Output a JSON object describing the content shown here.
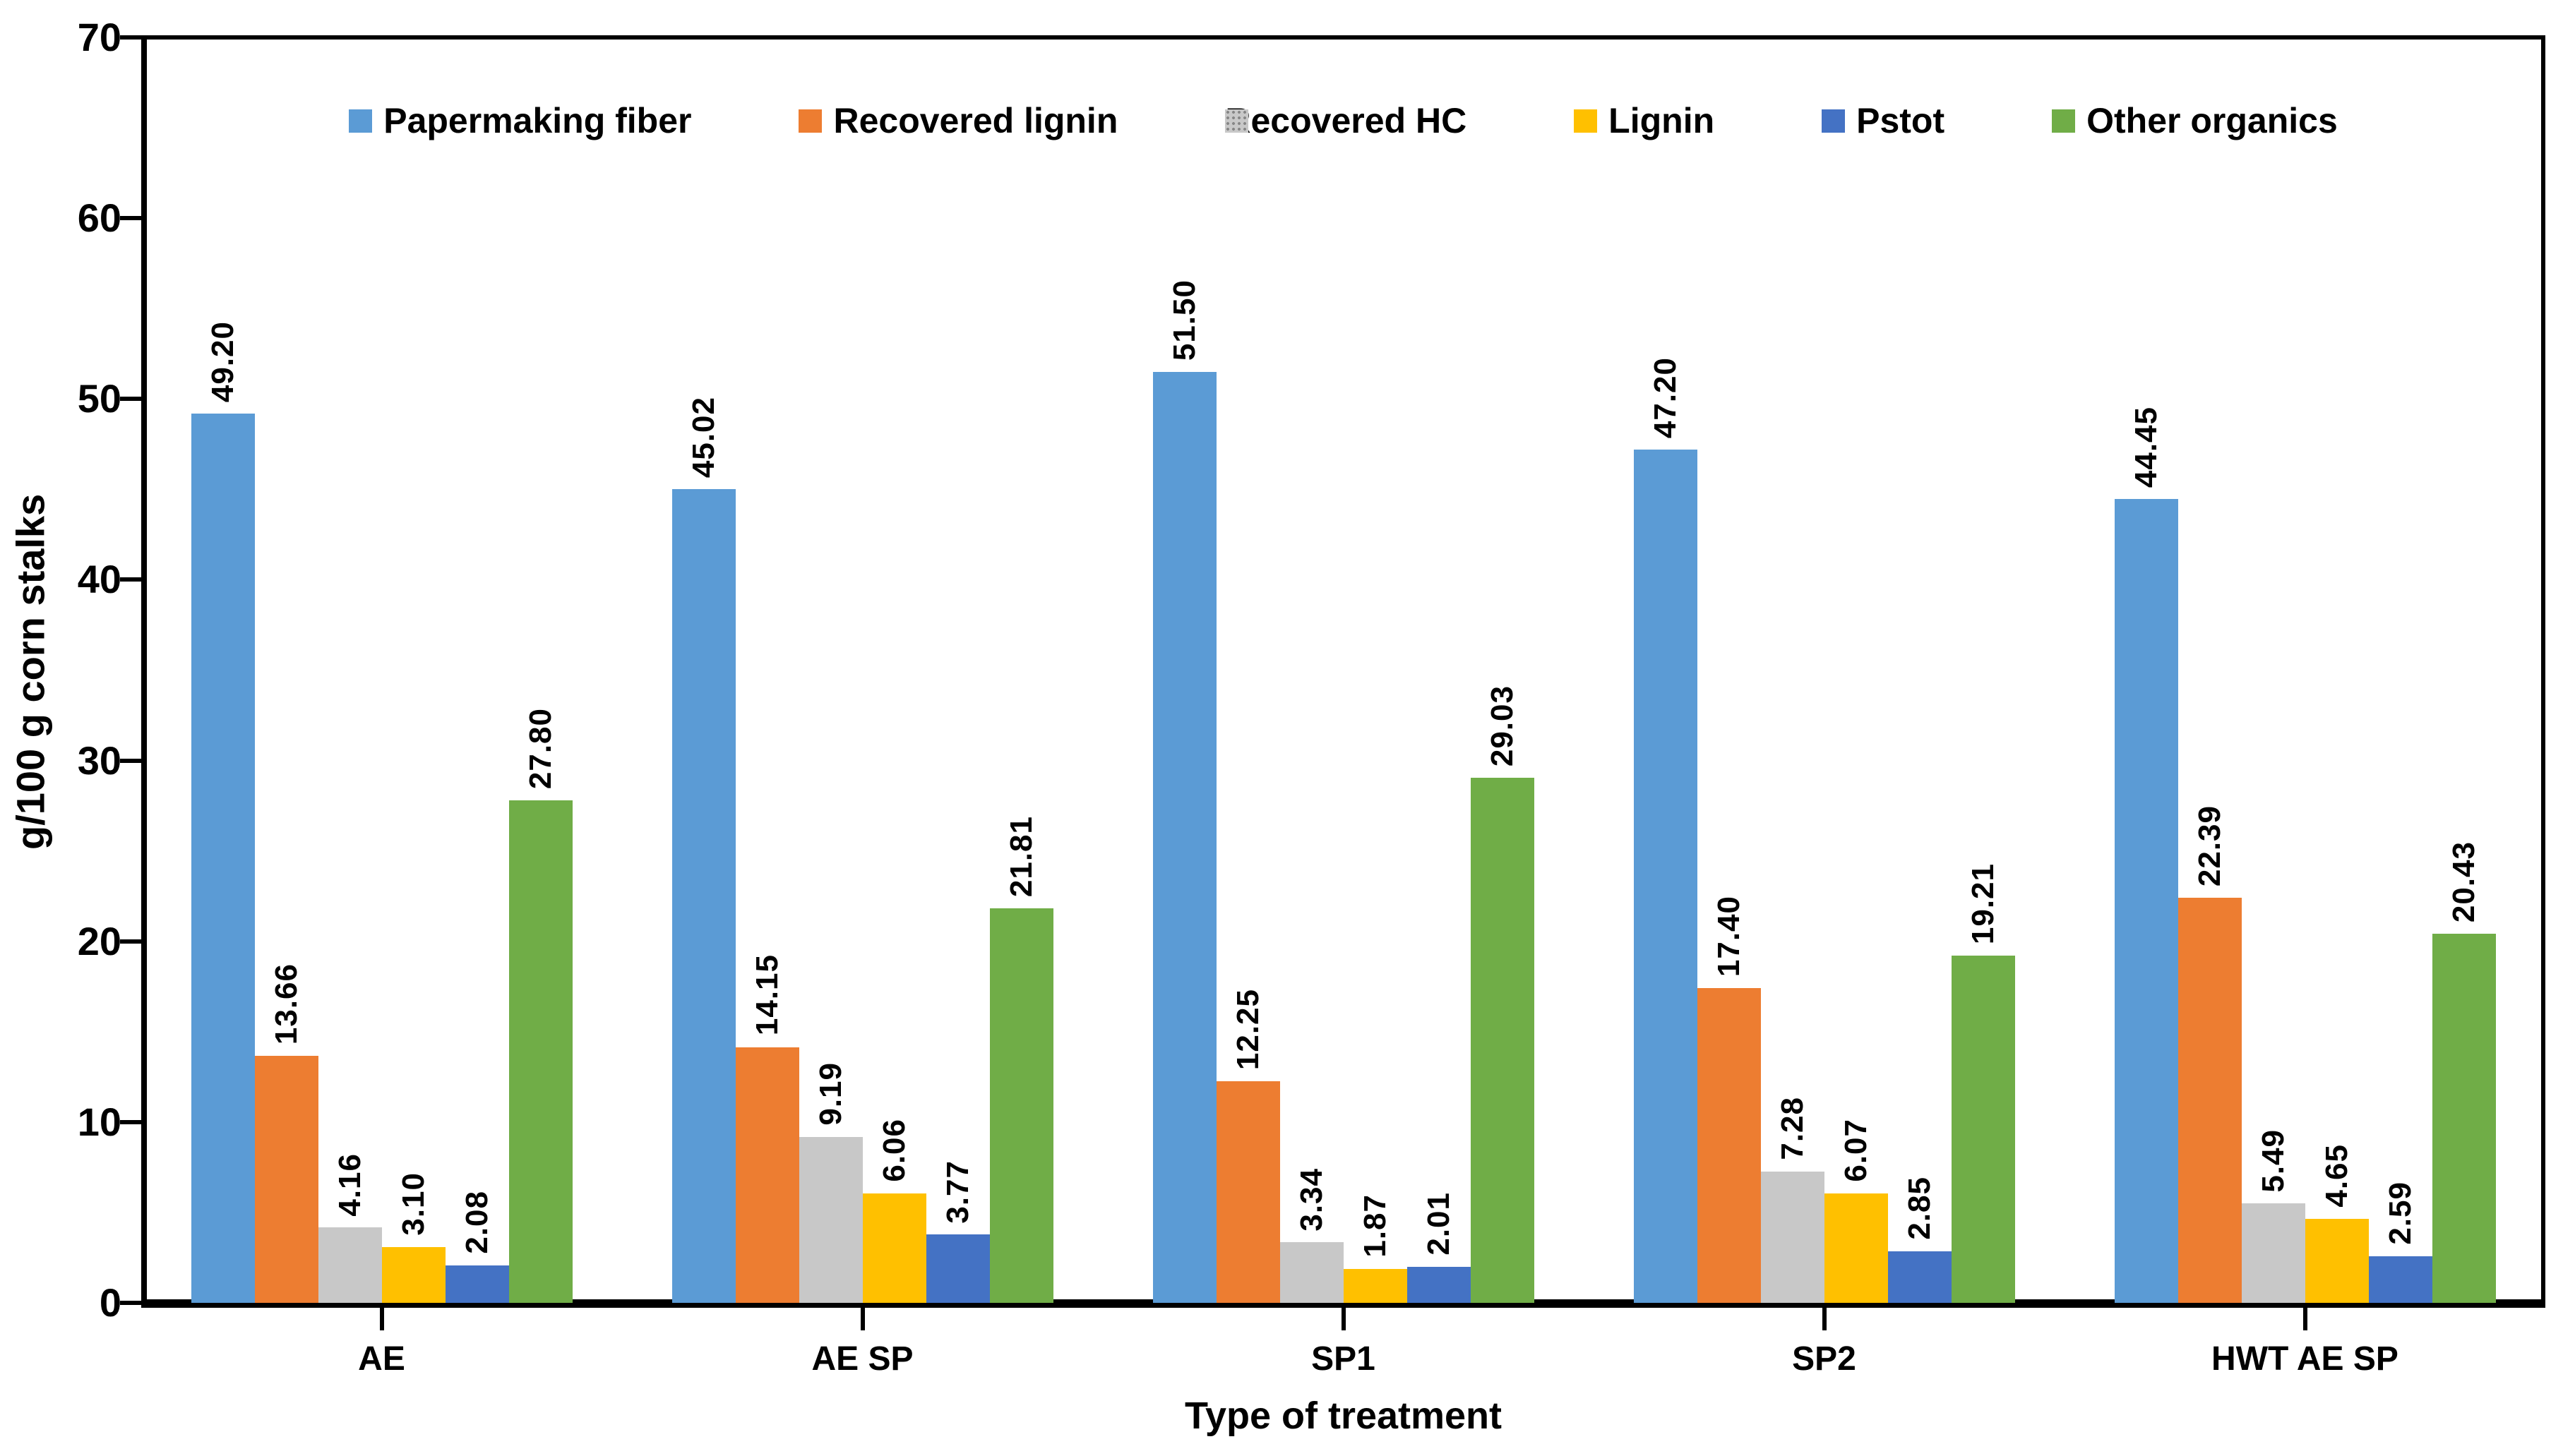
{
  "chart_data": {
    "type": "bar",
    "title": "",
    "xlabel": "Type of treatment",
    "ylabel": "g/100 g corn stalks",
    "ylim": [
      0,
      70
    ],
    "yticks": [
      0,
      10,
      20,
      30,
      40,
      50,
      60,
      70
    ],
    "grid": false,
    "legend_position": "top-inside",
    "value_labels": "rotated-90-above-bar, 2 decimals",
    "categories": [
      "AE",
      "AE SP",
      "SP1",
      "SP2",
      "HWT AE SP"
    ],
    "series": [
      {
        "name": "Papermaking fiber",
        "color": "#5B9BD5",
        "pattern": "solid",
        "values": [
          49.2,
          45.02,
          51.5,
          47.2,
          44.45
        ]
      },
      {
        "name": "Recovered lignin",
        "color": "#ED7D31",
        "pattern": "solid",
        "values": [
          13.66,
          14.15,
          12.25,
          17.4,
          22.39
        ]
      },
      {
        "name": "Recovered HC",
        "color": "#A5A5A5",
        "pattern": "dotted-grid",
        "values": [
          4.16,
          9.19,
          3.34,
          7.28,
          5.49
        ]
      },
      {
        "name": "Lignin",
        "color": "#FFC000",
        "pattern": "solid",
        "values": [
          3.1,
          6.06,
          1.87,
          6.07,
          4.65
        ]
      },
      {
        "name": "Pstot",
        "color": "#4472C4",
        "pattern": "solid",
        "values": [
          2.08,
          3.77,
          2.01,
          2.85,
          2.59
        ]
      },
      {
        "name": "Other organics",
        "color": "#70AD47",
        "pattern": "solid",
        "values": [
          27.8,
          21.81,
          29.03,
          19.21,
          20.43
        ]
      }
    ],
    "axis_color": "#000000",
    "text_color": "#000000"
  }
}
